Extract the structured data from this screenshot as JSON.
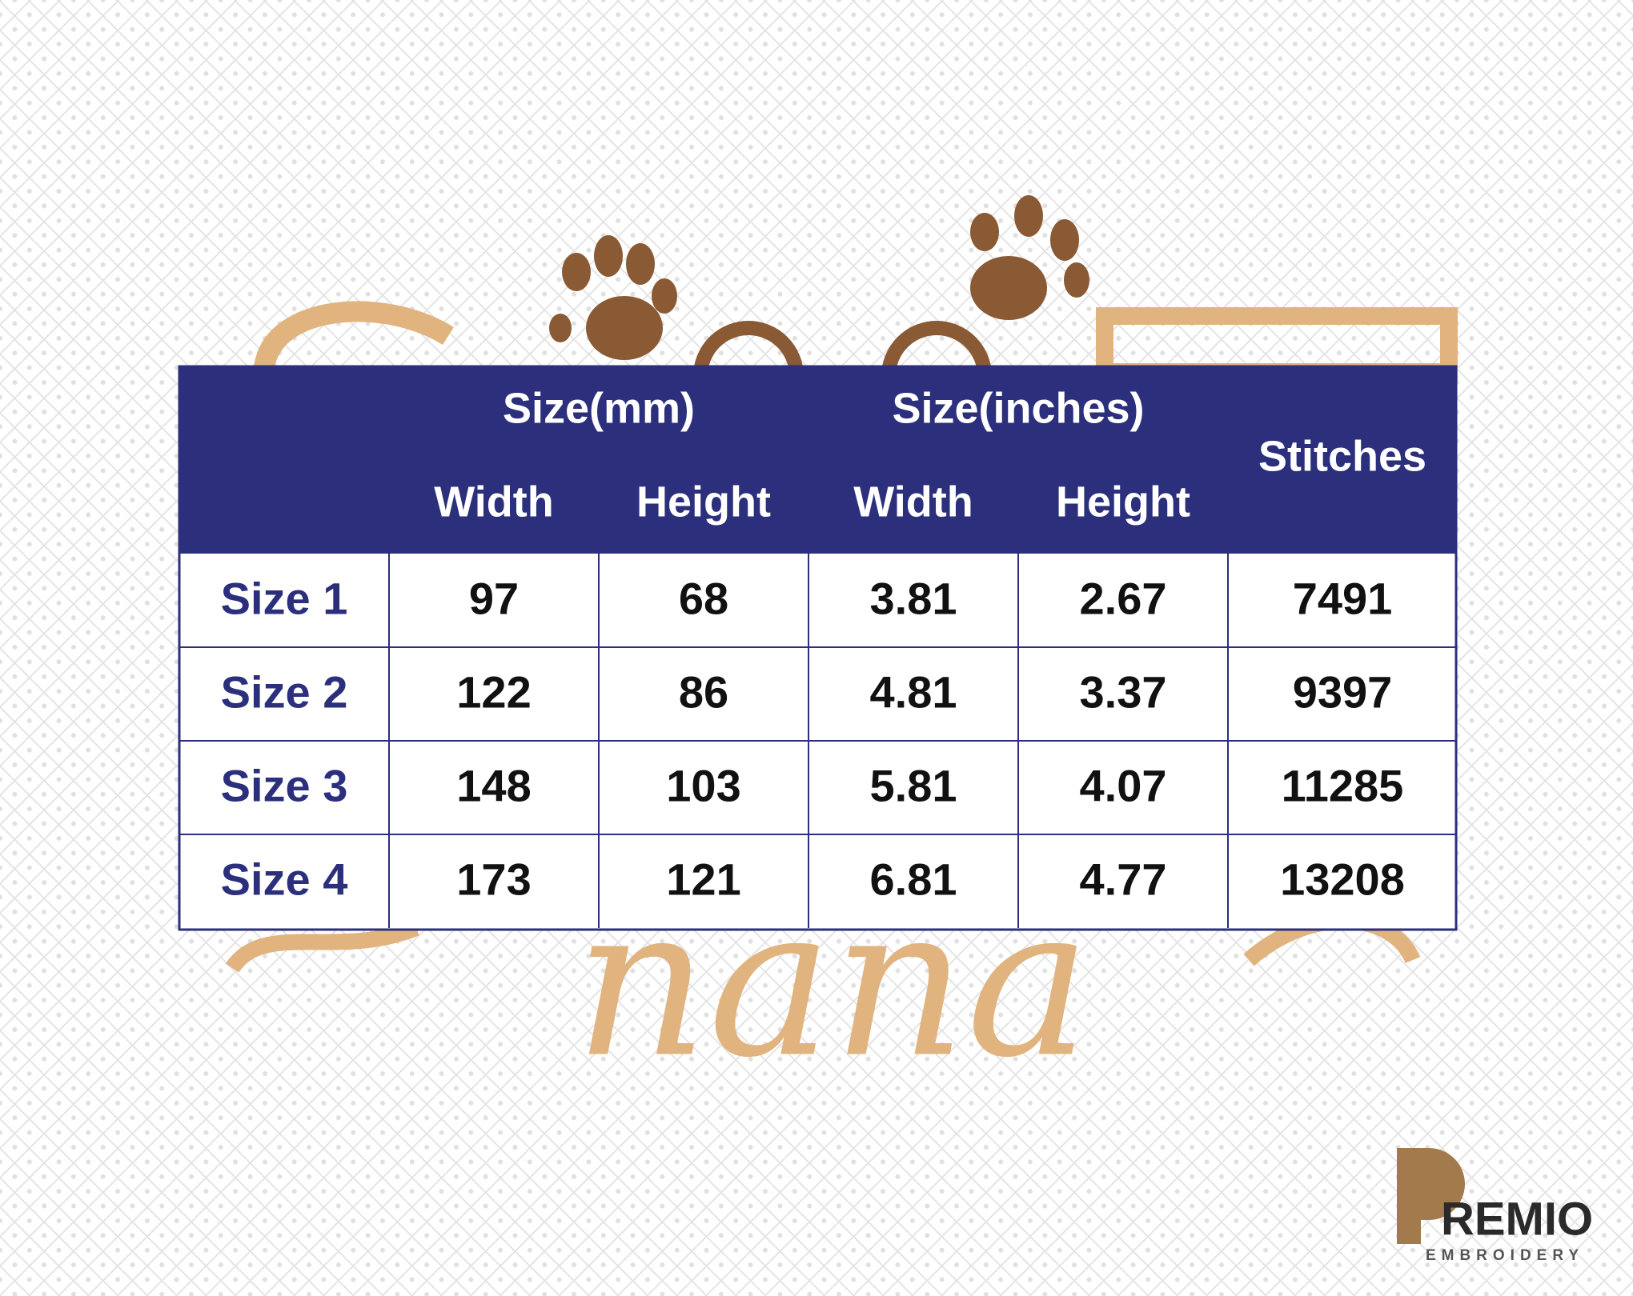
{
  "header": {
    "group_labels": [
      "Size(mm)",
      "Size(inches)"
    ],
    "stitches_label": "Stitches",
    "column_labels": [
      "Width",
      "Height",
      "Width",
      "Height"
    ]
  },
  "table": {
    "rows": [
      [
        "Size 1",
        "97",
        "68",
        "3.81",
        "2.67",
        "7491"
      ],
      [
        "Size 2",
        "122",
        "86",
        "4.81",
        "3.37",
        "9397"
      ],
      [
        "Size 3",
        "148",
        "103",
        "5.81",
        "4.07",
        "11285"
      ],
      [
        "Size 4",
        "173",
        "121",
        "6.81",
        "4.77",
        "13208"
      ]
    ]
  },
  "design": {
    "word": "nana"
  },
  "logo": {
    "name": "REMIO",
    "tagline": "EMBROIDERY"
  }
}
